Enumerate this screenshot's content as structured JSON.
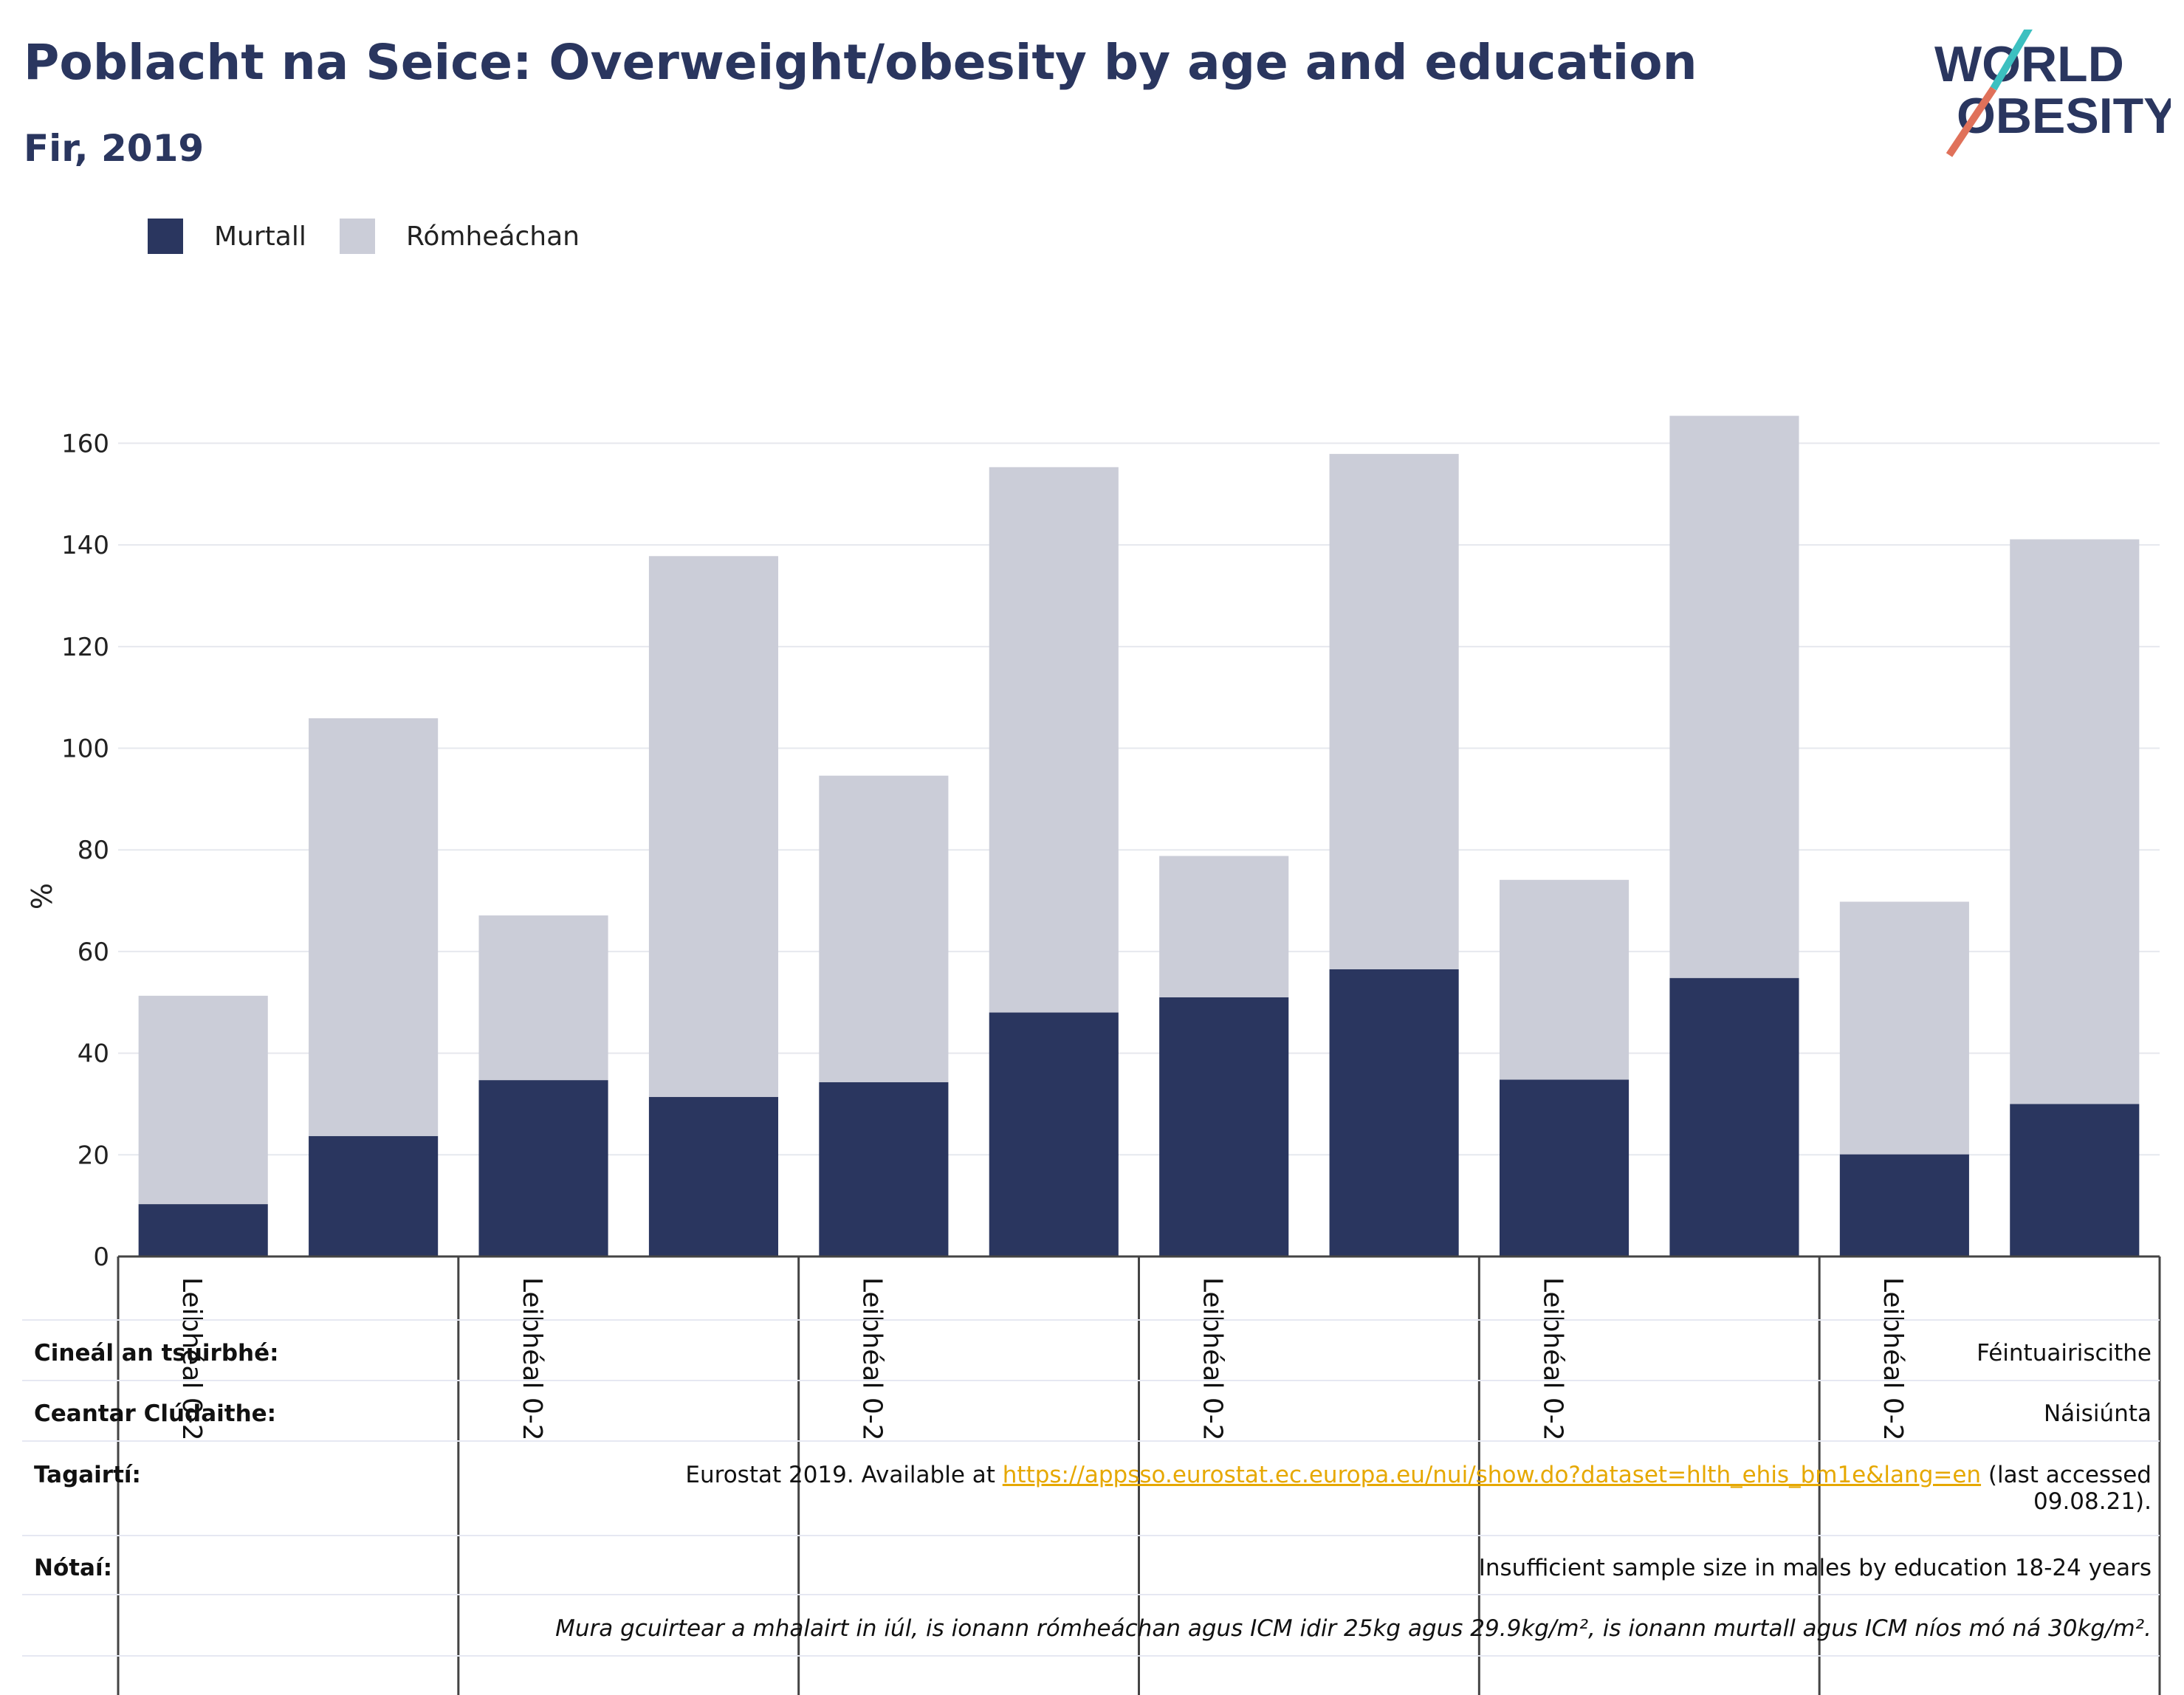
{
  "title": "Poblacht na Seice: Overweight/obesity by age and education",
  "subtitle": "Fir, 2019",
  "logo": {
    "line1": "WORLD",
    "line2": "OBESITY"
  },
  "colors": {
    "obese": "#2a365f",
    "overweight": "#cbcdd8",
    "text_dark": "#2a365f",
    "link": "#e6a800"
  },
  "legend": [
    {
      "label": "Murtall",
      "color": "#2a365f"
    },
    {
      "label": "Rómheáchan",
      "color": "#cbcdd8"
    }
  ],
  "chart_data": {
    "type": "bar",
    "stacked": true,
    "ylabel": "%",
    "ylim": [
      0,
      165
    ],
    "yticks": [
      0,
      20,
      40,
      60,
      80,
      100,
      120,
      140,
      160
    ],
    "group_labels": [
      "Leibhéal 0-2",
      "Leibhéal 0-2",
      "Leibhéal 0-2",
      "Leibhéal 0-2",
      "Leibhéal 0-2",
      "Leibhéal 0-2"
    ],
    "series": [
      {
        "name": "Murtall",
        "values": [
          10.3,
          23.7,
          34.7,
          31.4,
          34.3,
          48.0,
          51.0,
          56.5,
          34.8,
          54.8,
          20.1,
          30.0
        ]
      },
      {
        "name": "Rómheáchan",
        "values": [
          41.0,
          82.2,
          32.4,
          106.4,
          60.3,
          107.3,
          27.8,
          101.4,
          39.3,
          110.6,
          49.7,
          111.1
        ]
      }
    ],
    "grid": true
  },
  "meta": [
    {
      "label": "Cineál an tsuirbhé:",
      "value": "Féintuairiscithe"
    },
    {
      "label": "Ceantar Clúdaithe:",
      "value": "Náisiúnta"
    },
    {
      "label": "Tagairtí:",
      "prefix": "Eurostat 2019. Available at ",
      "link": "https://appsso.eurostat.ec.europa.eu/nui/show.do?dataset=hlth_ehis_bm1e&lang=en",
      "suffix": " (last accessed",
      "suffix2": "09.08.21)."
    },
    {
      "label": "Nótaí:",
      "value": "Insufficient sample size in males by education 18-24 years"
    },
    {
      "label": "",
      "value": "Mura gcuirtear a mhalairt in iúl, is ionann rómheáchan agus ICM idir 25kg agus 29.9kg/m², is ionann murtall agus ICM níos mó ná 30kg/m²."
    }
  ]
}
